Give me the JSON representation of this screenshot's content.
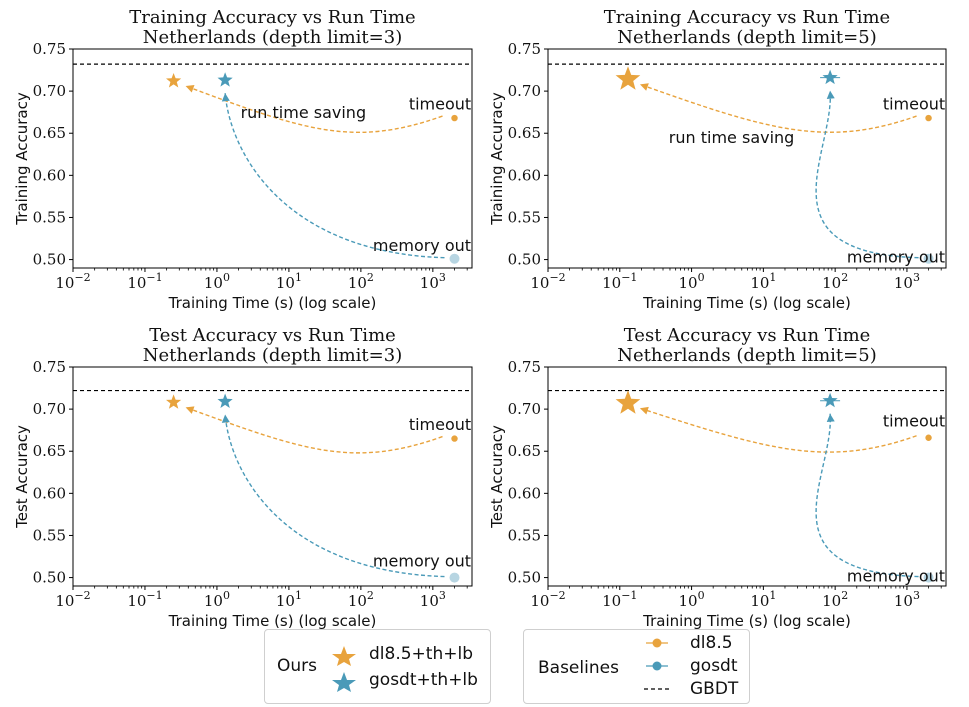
{
  "chart_data": [
    {
      "type": "scatter",
      "title": "Training Accuracy vs Run Time",
      "subtitle": "Netherlands (depth limit=3)",
      "xlabel": "Training Time (s) (log scale)",
      "ylabel": "Training Accuracy",
      "xscale": "log",
      "xlim": [
        0.01,
        3500
      ],
      "ylim": [
        0.49,
        0.75
      ],
      "yticks": [
        "0.50",
        "0.55",
        "0.60",
        "0.65",
        "0.70",
        "0.75"
      ],
      "xticks": [
        {
          "base": "10",
          "exp": "−2"
        },
        {
          "base": "10",
          "exp": "−1"
        },
        {
          "base": "10",
          "exp": "0"
        },
        {
          "base": "10",
          "exp": "1"
        },
        {
          "base": "10",
          "exp": "2"
        },
        {
          "base": "10",
          "exp": "3"
        }
      ],
      "gbdt": 0.732,
      "points": [
        {
          "series": "dl8.5+th+lb",
          "x": 0.25,
          "y": 0.712
        },
        {
          "series": "gosdt+th+lb",
          "x": 1.3,
          "y": 0.713
        },
        {
          "series": "dl8.5",
          "x": 2000,
          "y": 0.668
        },
        {
          "series": "gosdt",
          "x": 2000,
          "y": 0.501
        }
      ],
      "annotations": [
        {
          "text": "timeout",
          "x": 1700,
          "y": 0.683,
          "color": "#e8842a"
        },
        {
          "text": "memory out",
          "x": 1100,
          "y": 0.515,
          "color": "#5b9bd5"
        },
        {
          "text": "run time saving",
          "x": 20,
          "y": 0.673,
          "color": "#e8842a"
        }
      ]
    },
    {
      "type": "scatter",
      "title": "Training Accuracy vs Run Time",
      "subtitle": "Netherlands (depth limit=5)",
      "xlabel": "Training Time (s) (log scale)",
      "ylabel": "Training Accuracy",
      "xscale": "log",
      "xlim": [
        0.01,
        3500
      ],
      "ylim": [
        0.49,
        0.75
      ],
      "yticks": [
        "0.50",
        "0.55",
        "0.60",
        "0.65",
        "0.70",
        "0.75"
      ],
      "xticks": [
        {
          "base": "10",
          "exp": "−2"
        },
        {
          "base": "10",
          "exp": "−1"
        },
        {
          "base": "10",
          "exp": "0"
        },
        {
          "base": "10",
          "exp": "1"
        },
        {
          "base": "10",
          "exp": "2"
        },
        {
          "base": "10",
          "exp": "3"
        }
      ],
      "gbdt": 0.732,
      "points": [
        {
          "series": "dl8.5+th+lb",
          "x": 0.13,
          "y": 0.714
        },
        {
          "series": "gosdt+th+lb",
          "x": 85,
          "y": 0.716
        },
        {
          "series": "dl8.5",
          "x": 2000,
          "y": 0.668
        },
        {
          "series": "gosdt",
          "x": 2000,
          "y": 0.501
        }
      ],
      "annotations": [
        {
          "text": "timeout",
          "x": 1700,
          "y": 0.683,
          "color": "#e8842a"
        },
        {
          "text": "memory out",
          "x": 1100,
          "y": 0.501,
          "color": "#5b9bd5"
        },
        {
          "text": "run time saving",
          "x": 4,
          "y": 0.643,
          "color": "#e8842a"
        }
      ]
    },
    {
      "type": "scatter",
      "title": "Test Accuracy vs Run Time",
      "subtitle": "Netherlands (depth limit=3)",
      "xlabel": "Training Time (s) (log scale)",
      "ylabel": "Test Accuracy",
      "xscale": "log",
      "xlim": [
        0.01,
        3500
      ],
      "ylim": [
        0.49,
        0.75
      ],
      "yticks": [
        "0.50",
        "0.55",
        "0.60",
        "0.65",
        "0.70",
        "0.75"
      ],
      "xticks": [
        {
          "base": "10",
          "exp": "−2"
        },
        {
          "base": "10",
          "exp": "−1"
        },
        {
          "base": "10",
          "exp": "0"
        },
        {
          "base": "10",
          "exp": "1"
        },
        {
          "base": "10",
          "exp": "2"
        },
        {
          "base": "10",
          "exp": "3"
        }
      ],
      "gbdt": 0.722,
      "points": [
        {
          "series": "dl8.5+th+lb",
          "x": 0.25,
          "y": 0.708
        },
        {
          "series": "gosdt+th+lb",
          "x": 1.3,
          "y": 0.709
        },
        {
          "series": "dl8.5",
          "x": 2000,
          "y": 0.665
        },
        {
          "series": "gosdt",
          "x": 2000,
          "y": 0.5
        }
      ],
      "annotations": [
        {
          "text": "timeout",
          "x": 1700,
          "y": 0.68,
          "color": "#e8842a"
        },
        {
          "text": "memory out",
          "x": 1100,
          "y": 0.518,
          "color": "#5b9bd5"
        }
      ]
    },
    {
      "type": "scatter",
      "title": "Test Accuracy vs Run Time",
      "subtitle": "Netherlands (depth limit=5)",
      "xlabel": "Training Time (s) (log scale)",
      "ylabel": "Test Accuracy",
      "xscale": "log",
      "xlim": [
        0.01,
        3500
      ],
      "ylim": [
        0.49,
        0.75
      ],
      "yticks": [
        "0.50",
        "0.55",
        "0.60",
        "0.65",
        "0.70",
        "0.75"
      ],
      "xticks": [
        {
          "base": "10",
          "exp": "−2"
        },
        {
          "base": "10",
          "exp": "−1"
        },
        {
          "base": "10",
          "exp": "0"
        },
        {
          "base": "10",
          "exp": "1"
        },
        {
          "base": "10",
          "exp": "2"
        },
        {
          "base": "10",
          "exp": "3"
        }
      ],
      "gbdt": 0.722,
      "points": [
        {
          "series": "dl8.5+th+lb",
          "x": 0.13,
          "y": 0.707
        },
        {
          "series": "gosdt+th+lb",
          "x": 85,
          "y": 0.71
        },
        {
          "series": "dl8.5",
          "x": 2000,
          "y": 0.666
        },
        {
          "series": "gosdt",
          "x": 2000,
          "y": 0.5
        }
      ],
      "annotations": [
        {
          "text": "timeout",
          "x": 1700,
          "y": 0.684,
          "color": "#e8842a"
        },
        {
          "text": "memory out",
          "x": 1100,
          "y": 0.5,
          "color": "#5b9bd5"
        }
      ]
    }
  ],
  "legend": {
    "ours": {
      "title": "Ours",
      "items": [
        {
          "label": "dl8.5+th+lb",
          "marker": "star-icon",
          "color": "#e8a33d"
        },
        {
          "label": "gosdt+th+lb",
          "marker": "star-icon",
          "color": "#4a9ab8"
        }
      ]
    },
    "baselines": {
      "title": "Baselines",
      "items": [
        {
          "label": "dl8.5",
          "marker": "circle-errorbar-icon",
          "color": "#e8a33d"
        },
        {
          "label": "gosdt",
          "marker": "circle-errorbar-icon",
          "color": "#4a9ab8"
        },
        {
          "label": "GBDT",
          "marker": "dashed-line-icon",
          "color": "#000000"
        }
      ]
    }
  },
  "colors": {
    "dl85_ours": "#e8a33d",
    "gosdt_ours": "#4a9ab8",
    "dl85_base": "#e8a33d",
    "gosdt_base": "#b7d5e2",
    "orange_arrow": "#e8a33d",
    "blue_arrow": "#4a9ab8",
    "orange_text": "#e8842a",
    "blue_text": "#5b9bd5"
  }
}
